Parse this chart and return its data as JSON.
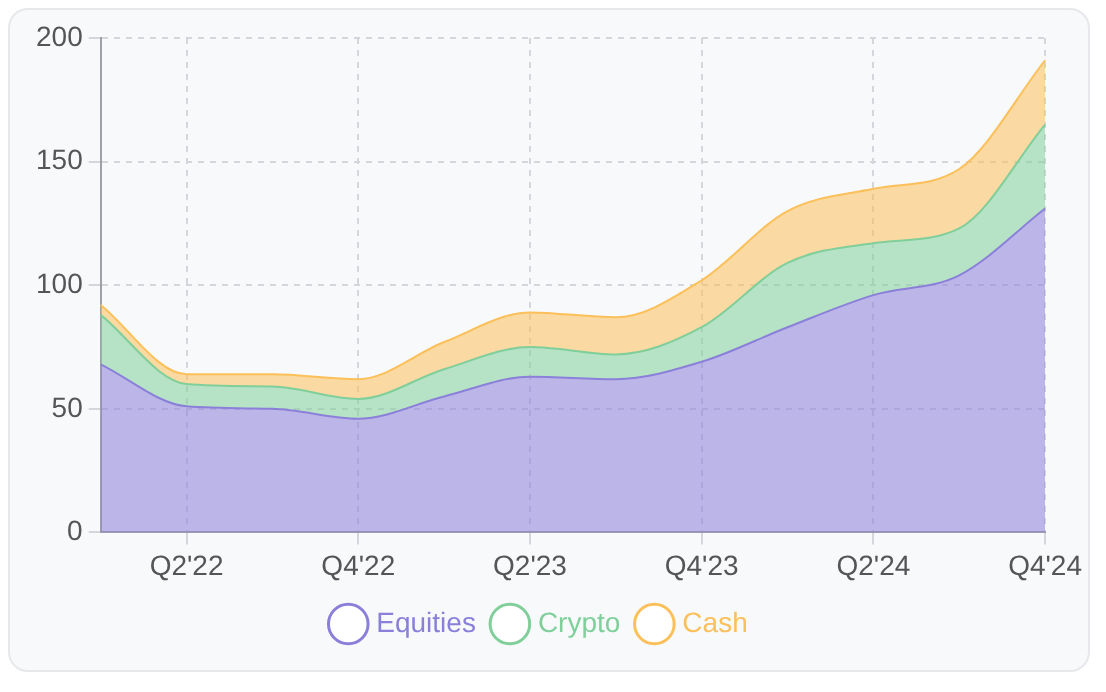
{
  "chart_data": {
    "type": "area",
    "stacked": true,
    "categories": [
      null,
      "Q2'22",
      null,
      "Q4'22",
      null,
      "Q2'23",
      null,
      "Q4'23",
      null,
      "Q2'24",
      null,
      "Q4'24"
    ],
    "series": [
      {
        "name": "Equities",
        "color": "#8b80d9",
        "values": [
          68,
          51,
          50,
          46,
          55,
          63,
          62,
          69,
          83,
          96,
          104,
          131
        ]
      },
      {
        "name": "Crypto",
        "color": "#80cf9a",
        "values": [
          20,
          9,
          9,
          8,
          11,
          12,
          10,
          14,
          26,
          21,
          19,
          34
        ]
      },
      {
        "name": "Cash",
        "color": "#fcc05a",
        "values": [
          4,
          4,
          5,
          8,
          11,
          14,
          15,
          19,
          21,
          22,
          24,
          26
        ]
      }
    ],
    "ylim": [
      0,
      200
    ],
    "yticks": [
      0,
      50,
      100,
      150,
      200
    ],
    "grid": true,
    "legend": "bottom",
    "marker": "none"
  }
}
